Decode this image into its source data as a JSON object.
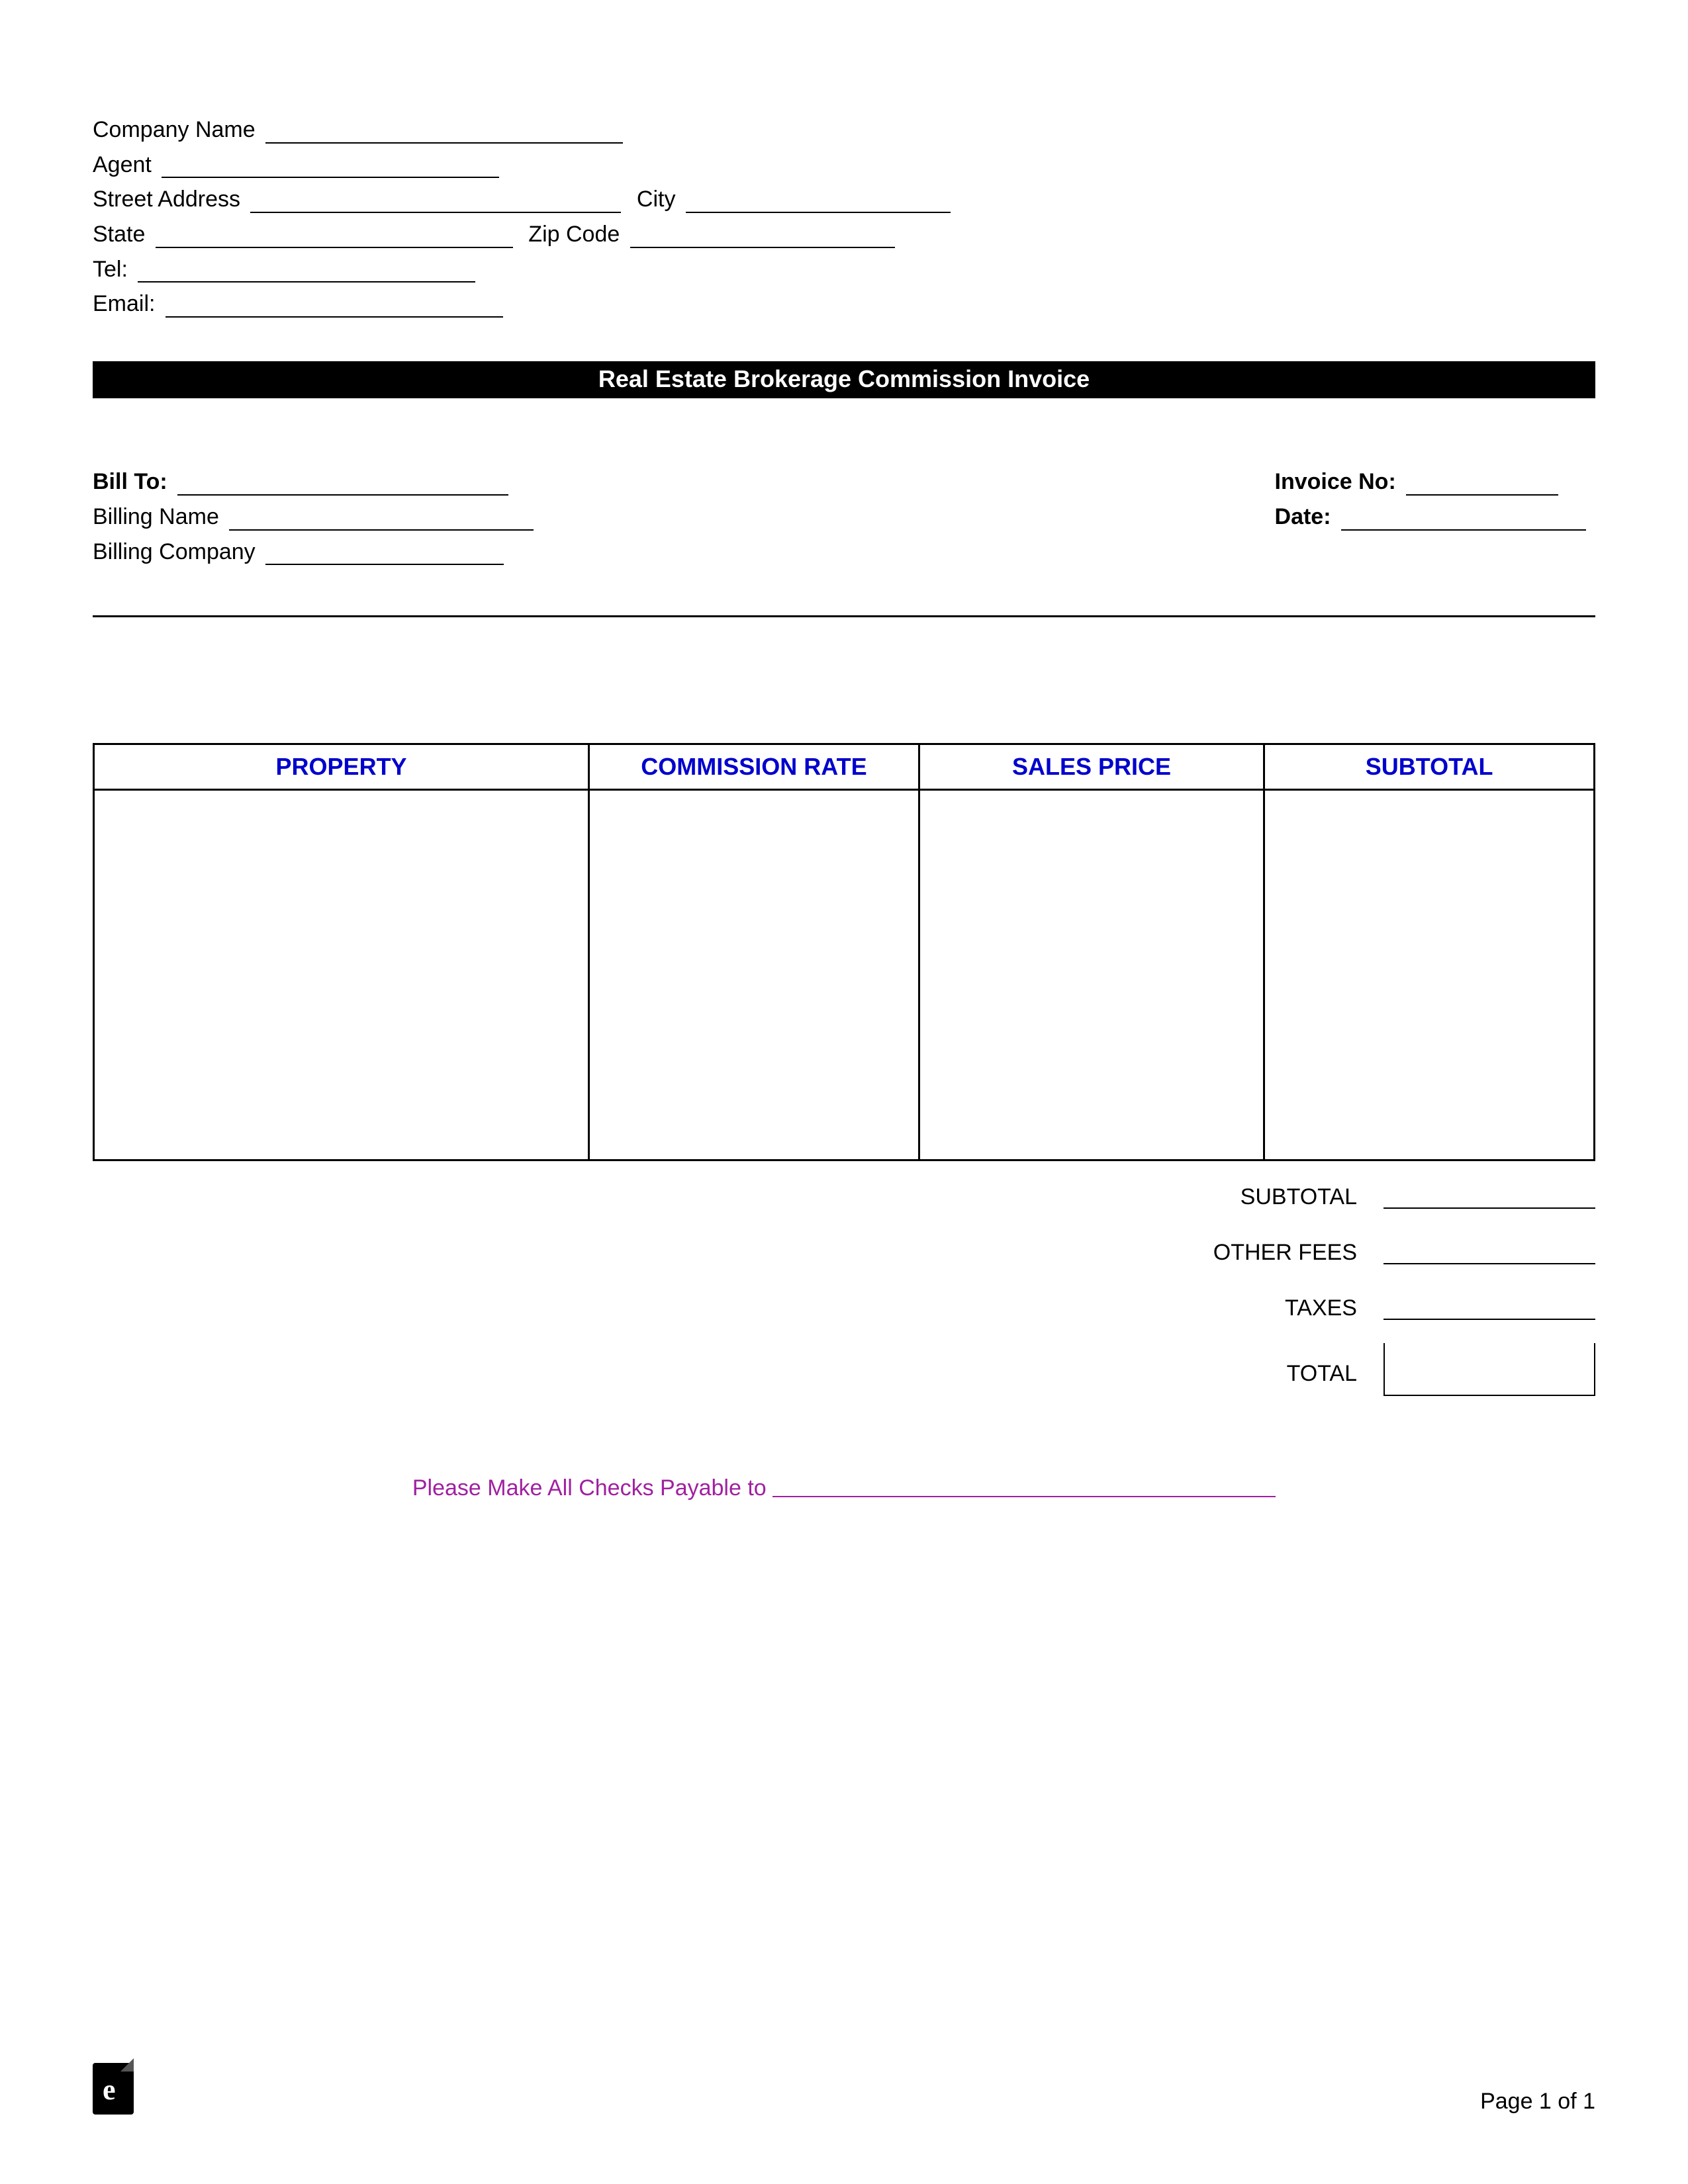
{
  "header": {
    "company_name_label": "Company Name",
    "agent_label": "Agent",
    "street_address_label": "Street Address",
    "city_label": "City",
    "state_label": "State",
    "zip_label": "Zip Code",
    "tel_label": "Tel:",
    "email_label": "Email:"
  },
  "title": "Real Estate Brokerage Commission Invoice",
  "bill": {
    "bill_to_label": "Bill To:",
    "billing_name_label": "Billing Name",
    "billing_company_label": "Billing Company",
    "invoice_no_label": "Invoice No:",
    "date_label": "Date:"
  },
  "table": {
    "headers": [
      "PROPERTY",
      "COMMISSION RATE",
      "SALES PRICE",
      "SUBTOTAL"
    ],
    "header_color": "#0000cd",
    "col_widths": [
      "33%",
      "22%",
      "23%",
      "22%"
    ]
  },
  "totals": {
    "subtotal_label": "SUBTOTAL",
    "other_fees_label": "OTHER FEES",
    "taxes_label": "TAXES",
    "total_label": "TOTAL"
  },
  "checks": {
    "text": "Please Make All Checks Payable to",
    "color": "#a020a0"
  },
  "footer": {
    "page_text": "Page 1 of 1",
    "logo_letter": "e"
  },
  "underlines": {
    "company_name": 540,
    "agent": 510,
    "street_address": 560,
    "city": 400,
    "state": 540,
    "zip": 400,
    "tel": 510,
    "email": 510,
    "bill_to": 500,
    "billing_name": 460,
    "billing_company": 360,
    "invoice_no": 230,
    "date": 370
  }
}
